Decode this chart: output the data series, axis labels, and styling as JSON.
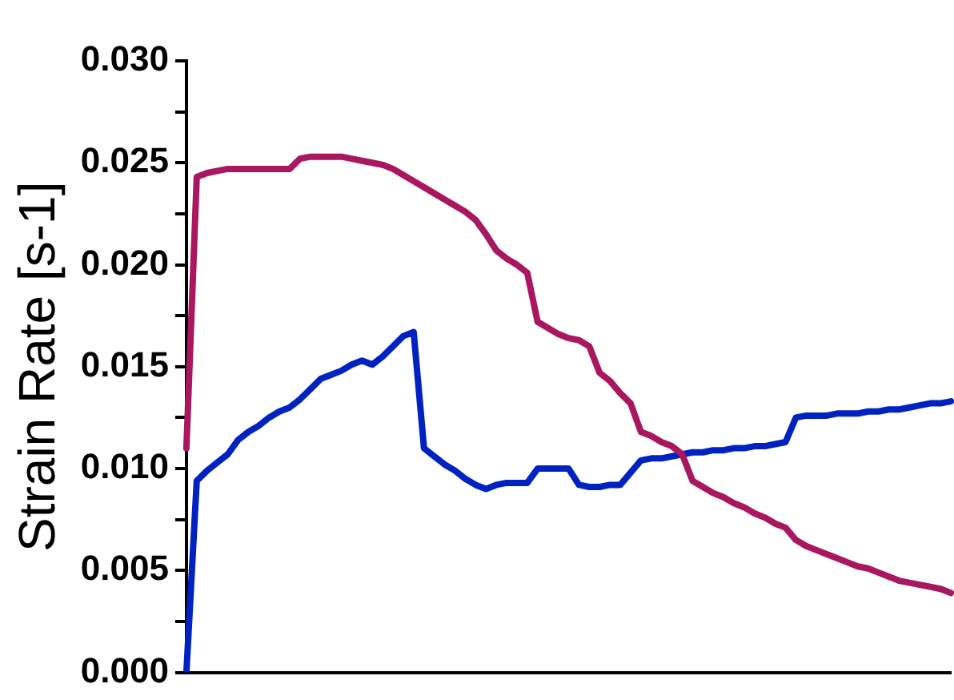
{
  "chart_data": {
    "type": "line",
    "ylabel": "Strain Rate [s-1]",
    "categories": [
      null,
      null,
      null,
      null,
      null,
      null,
      null,
      null,
      null,
      null,
      null,
      null,
      null,
      null,
      null,
      null,
      null,
      null,
      null,
      null,
      null,
      null,
      null,
      null,
      null,
      null,
      null,
      null,
      null,
      null,
      null,
      null,
      null,
      null,
      null,
      null,
      null,
      null,
      null,
      null,
      null,
      null,
      null,
      null,
      null,
      null,
      null,
      null,
      null,
      null,
      null,
      null,
      null,
      null,
      null,
      null,
      null,
      null,
      null,
      null,
      null,
      null,
      null,
      null,
      null,
      null,
      null,
      null,
      null,
      null,
      null,
      null,
      null,
      null,
      null
    ],
    "ylim": [
      0,
      0.03
    ],
    "yticks": [
      {
        "value": 0,
        "label": "0.000"
      },
      {
        "value": 0.0025,
        "label": null
      },
      {
        "value": 0.005,
        "label": "0.005"
      },
      {
        "value": 0.0075,
        "label": null
      },
      {
        "value": 0.01,
        "label": "0.010"
      },
      {
        "value": 0.0125,
        "label": null
      },
      {
        "value": 0.015,
        "label": "0.015"
      },
      {
        "value": 0.0175,
        "label": null
      },
      {
        "value": 0.02,
        "label": "0.020"
      },
      {
        "value": 0.0225,
        "label": null
      },
      {
        "value": 0.025,
        "label": "0.025"
      },
      {
        "value": 0.0275,
        "label": null
      },
      {
        "value": 0.03,
        "label": "0.030"
      }
    ],
    "marker": "none",
    "line_style": "solid",
    "series": [
      {
        "color": "#a8175f",
        "values": [
          0.011,
          0.0243,
          0.0245,
          0.0246,
          0.0247,
          0.0247,
          0.0247,
          0.0247,
          0.0247,
          0.0247,
          0.0247,
          0.0252,
          0.0253,
          0.0253,
          0.0253,
          0.0253,
          0.0252,
          0.0251,
          0.025,
          0.0249,
          0.0247,
          0.0244,
          0.0241,
          0.0238,
          0.0235,
          0.0232,
          0.0229,
          0.0226,
          0.0222,
          0.0215,
          0.0207,
          0.0203,
          0.02,
          0.0196,
          0.0172,
          0.0169,
          0.0166,
          0.0164,
          0.0163,
          0.016,
          0.0147,
          0.0143,
          0.0137,
          0.0132,
          0.0118,
          0.0116,
          0.0113,
          0.0111,
          0.0107,
          0.0094,
          0.0091,
          0.0088,
          0.0086,
          0.0083,
          0.0081,
          0.0078,
          0.0076,
          0.0073,
          0.0071,
          0.0065,
          0.0062,
          0.006,
          0.0058,
          0.0056,
          0.0054,
          0.0052,
          0.0051,
          0.0049,
          0.0047,
          0.0045,
          0.0044,
          0.0043,
          0.0042,
          0.0041,
          0.0039
        ]
      },
      {
        "color": "#0022c0",
        "values": [
          0,
          0.0094,
          0.0099,
          0.0103,
          0.0107,
          0.0114,
          0.0118,
          0.0121,
          0.0125,
          0.0128,
          0.013,
          0.0134,
          0.0139,
          0.0144,
          0.0146,
          0.0148,
          0.0151,
          0.0153,
          0.0151,
          0.0155,
          0.016,
          0.0165,
          0.0167,
          0.011,
          0.0106,
          0.0102,
          0.0099,
          0.0095,
          0.0092,
          0.009,
          0.0092,
          0.0093,
          0.0093,
          0.0093,
          0.01,
          0.01,
          0.01,
          0.01,
          0.0092,
          0.0091,
          0.0091,
          0.0092,
          0.0092,
          0.0098,
          0.0104,
          0.0105,
          0.0105,
          0.0106,
          0.0107,
          0.0108,
          0.0108,
          0.0109,
          0.0109,
          0.011,
          0.011,
          0.0111,
          0.0111,
          0.0112,
          0.0113,
          0.0125,
          0.0126,
          0.0126,
          0.0126,
          0.0127,
          0.0127,
          0.0127,
          0.0128,
          0.0128,
          0.0129,
          0.0129,
          0.013,
          0.0131,
          0.0132,
          0.0132,
          0.0133
        ]
      }
    ]
  }
}
